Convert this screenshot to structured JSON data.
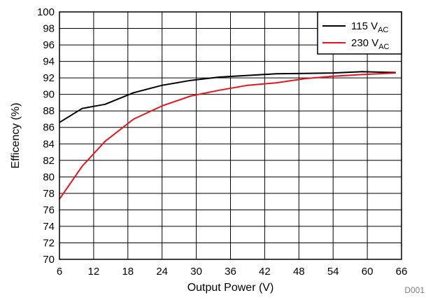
{
  "chart_data": {
    "type": "line",
    "xlabel": "Output Power (V)",
    "ylabel": "Efficency (%)",
    "xlim": [
      6,
      66
    ],
    "ylim": [
      70,
      100
    ],
    "xticks": [
      6,
      12,
      18,
      24,
      30,
      36,
      42,
      48,
      54,
      60,
      66
    ],
    "yticks": [
      70,
      72,
      74,
      76,
      78,
      80,
      82,
      84,
      86,
      88,
      90,
      92,
      94,
      96,
      98,
      100
    ],
    "grid": true,
    "legend_position": "top-right",
    "figure_id": "D001",
    "series": [
      {
        "name": "115 VAC",
        "name_main": "115 V",
        "name_sub": "AC",
        "color": "#000000",
        "x": [
          6,
          10,
          14,
          19,
          24,
          29,
          34,
          39,
          44,
          49,
          54,
          59,
          65
        ],
        "y": [
          86.6,
          88.3,
          88.8,
          90.2,
          91.1,
          91.7,
          92.1,
          92.3,
          92.5,
          92.55,
          92.6,
          92.75,
          92.65
        ]
      },
      {
        "name": "230 VAC",
        "name_main": "230 V",
        "name_sub": "AC",
        "color": "#e8141c",
        "x": [
          6,
          10,
          14,
          19,
          24,
          29,
          34,
          39,
          44,
          49,
          54,
          59,
          65
        ],
        "y": [
          77.3,
          81.3,
          84.3,
          87.0,
          88.6,
          89.8,
          90.5,
          91.1,
          91.4,
          91.9,
          92.2,
          92.4,
          92.6
        ]
      }
    ]
  }
}
